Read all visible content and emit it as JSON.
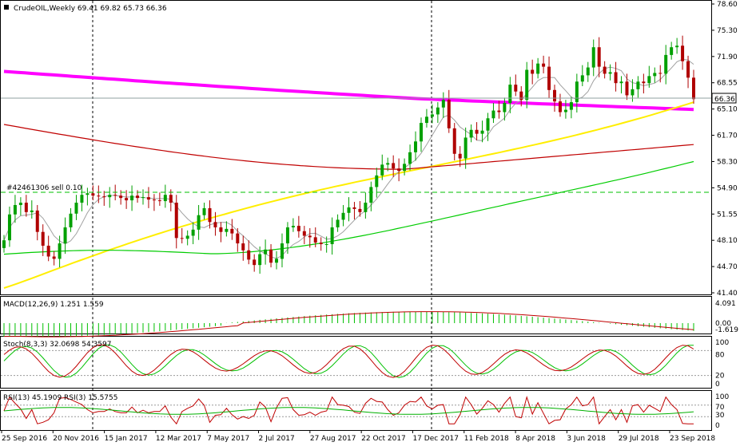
{
  "main": {
    "symbol_line": "CrudeOIL,Weekly  69.41 69.82 65.73 66.36",
    "trade_label": "#42461306 sell 0.10",
    "price_ticks": [
      "78.60",
      "75.30",
      "71.90",
      "68.55",
      "65.10",
      "61.70",
      "58.30",
      "54.90",
      "51.55",
      "48.10",
      "44.70",
      "41.40"
    ],
    "current_price": "66.36"
  },
  "macd": {
    "label": "MACD(12,26,9) 1.251 1.559",
    "ticks": [
      "4.091",
      "0.00",
      "-1.619"
    ]
  },
  "stoch": {
    "label": "Stoch(8,3,3) 32.0698 54.3597",
    "ticks": [
      "100",
      "80",
      "20",
      "0"
    ]
  },
  "rsi": {
    "label": "RSI(13) 45.1909  RSI(3) 15.5755",
    "ticks": [
      "100",
      "70",
      "30",
      "0"
    ]
  },
  "time_axis": [
    "25 Sep 2016",
    "20 Nov 2016",
    "15 Jan 2017",
    "12 Mar 2017",
    "7 May 2017",
    "2 Jul 2017",
    "27 Aug 2017",
    "22 Oct 2017",
    "17 Dec 2017",
    "11 Feb 2018",
    "8 Apr 2018",
    "3 Jun 2018",
    "29 Jul 2018",
    "23 Sep 2018"
  ],
  "colors": {
    "up": "#00a000",
    "down": "#b00000",
    "ma_magenta": "#ff00ff",
    "ma_yellow": "#ffee00",
    "ma_red": "#c00000",
    "ma_green": "#00cc00",
    "ma_grey": "#a0a0a0",
    "current_line": "#8fa0a0"
  },
  "chart_data": {
    "type": "candlestick",
    "title": "CrudeOIL,Weekly",
    "interval": "weekly",
    "ylim": [
      41.4,
      78.6
    ],
    "last_ohlc": {
      "open": 69.41,
      "high": 69.82,
      "low": 65.73,
      "close": 66.36
    },
    "closes_approx": [
      48.1,
      51.5,
      52.7,
      53.0,
      51.8,
      52.0,
      49.2,
      47.4,
      46.0,
      45.7,
      47.7,
      49.8,
      51.6,
      53.0,
      54.0,
      54.2,
      53.9,
      53.8,
      53.7,
      54.0,
      53.9,
      53.6,
      53.3,
      53.9,
      53.6,
      53.7,
      53.4,
      53.3,
      53.2,
      54.0,
      53.0,
      48.4,
      48.3,
      48.7,
      49.5,
      51.4,
      52.3,
      50.5,
      49.8,
      49.2,
      49.6,
      49.0,
      47.7,
      46.8,
      45.6,
      44.9,
      46.3,
      46.9,
      45.2,
      45.7,
      47.7,
      49.8,
      50.0,
      49.3,
      48.7,
      48.5,
      47.8,
      47.6,
      47.6,
      49.8,
      50.8,
      51.7,
      52.4,
      52.2,
      51.8,
      53.0,
      55.0,
      56.5,
      57.9,
      58.1,
      57.4,
      57.1,
      58.0,
      59.5,
      60.9,
      63.3,
      64.1,
      64.4,
      65.3,
      66.3,
      62.6,
      59.3,
      58.7,
      61.4,
      62.4,
      61.9,
      62.3,
      63.9,
      64.9,
      64.7,
      65.9,
      68.3,
      67.4,
      66.3,
      70.2,
      69.7,
      71.0,
      70.6,
      67.6,
      66.1,
      64.7,
      65.0,
      66.0,
      68.7,
      69.5,
      70.5,
      73.1,
      70.6,
      69.7,
      69.9,
      68.5,
      68.7,
      66.9,
      67.7,
      68.7,
      68.5,
      69.4,
      69.8,
      69.7,
      72.1,
      73.1,
      73.3,
      71.3,
      69.2,
      66.4
    ],
    "moving_averages": [
      {
        "color": "magenta",
        "approx": "long-period MA declining from ~70 to ~65"
      },
      {
        "color": "yellow",
        "approx": "MA rising from ~42 to ~66"
      },
      {
        "color": "red",
        "approx": "MA from ~63 dipping to ~57.8 then ~61"
      },
      {
        "color": "green",
        "approx": "MA from ~46.4 to ~58.3"
      },
      {
        "color": "grey",
        "approx": "short MA following price"
      }
    ],
    "trade_line": {
      "price": 54.4
    },
    "indicators": [
      {
        "name": "MACD(12,26,9)",
        "values": [
          1.251,
          1.559
        ]
      },
      {
        "name": "Stoch(8,3,3)",
        "values": [
          32.0698,
          54.3597
        ]
      },
      {
        "name": "RSI(13)",
        "value": 45.1909
      },
      {
        "name": "RSI(3)",
        "value": 15.5755
      }
    ]
  }
}
